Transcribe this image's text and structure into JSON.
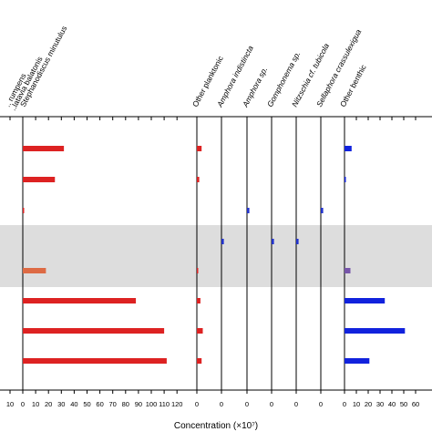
{
  "chart_data": {
    "type": "bar",
    "orientation": "horizontal",
    "xlabel": "Concentration (×10⁷)",
    "grid": false,
    "shaded_band": {
      "description": "grey horizontal band across all panels",
      "color": "#dddddd",
      "rows": [
        4,
        5
      ]
    },
    "rows": 9,
    "panels": [
      {
        "taxon": "...rumpens / Pseudostaurosira balatonis (partial)",
        "header_lines": [
          ".. rumpens",
          "..latavia balatonis"
        ],
        "axis": {
          "ticks": [
            10
          ],
          "min": 0,
          "max": 10
        },
        "values": [
          0,
          0,
          0,
          0,
          0,
          0,
          0,
          0,
          0
        ],
        "color": "#dd2222",
        "show_axis_line": false
      },
      {
        "taxon": "Stephanodiscus minutulus",
        "header_lines": [
          "Stephanodiscus minutulus"
        ],
        "axis": {
          "ticks": [
            0,
            10,
            20,
            30,
            40,
            50,
            60,
            70,
            80,
            90,
            100,
            110,
            120
          ],
          "min": 0,
          "max": 120
        },
        "values": [
          32,
          25,
          0.3,
          0,
          18,
          88,
          110,
          112,
          0
        ],
        "highlight": {
          "row": 4,
          "color": "#dd6a44"
        },
        "color": "#dd2222",
        "show_axis_line": true
      },
      {
        "taxon": "Other planktonic",
        "header_lines": [
          "Other planktonic"
        ],
        "axis": {
          "ticks": [
            0
          ],
          "min": 0,
          "max": 10
        },
        "values": [
          4,
          2,
          0,
          0,
          0.5,
          3,
          5,
          4,
          0
        ],
        "color": "#dd2222",
        "show_axis_line": true
      },
      {
        "taxon": "Amphora indistincta",
        "header_lines": [
          "Amphora indistincta"
        ],
        "axis": {
          "ticks": [
            0
          ],
          "min": 0,
          "max": 10
        },
        "values": [
          0,
          0,
          0,
          2,
          0,
          0,
          0,
          0,
          0
        ],
        "color": "#2233cc",
        "show_axis_line": true
      },
      {
        "taxon": "Amphora sp.",
        "header_lines": [
          "Amphora sp."
        ],
        "axis": {
          "ticks": [
            0
          ],
          "min": 0,
          "max": 10
        },
        "values": [
          0,
          0,
          2,
          0,
          0,
          0,
          0,
          0,
          0
        ],
        "color": "#2233cc",
        "show_axis_line": true
      },
      {
        "taxon": "Gomphonema sp.",
        "header_lines": [
          "Gomphonema sp."
        ],
        "axis": {
          "ticks": [
            0
          ],
          "min": 0,
          "max": 10
        },
        "values": [
          0,
          0,
          0,
          2,
          0,
          0,
          0,
          0,
          0
        ],
        "color": "#2233cc",
        "show_axis_line": true
      },
      {
        "taxon": "Nitzschia cf. tubicola",
        "header_lines": [
          "Nitzschia cf. tubicola"
        ],
        "axis": {
          "ticks": [
            0
          ],
          "min": 0,
          "max": 10
        },
        "values": [
          0,
          0,
          0,
          2,
          0,
          0,
          0,
          0,
          0
        ],
        "color": "#2233cc",
        "show_axis_line": true
      },
      {
        "taxon": "Sellaphora crassulexigua",
        "header_lines": [
          "Sellaphora crassulexigua"
        ],
        "axis": {
          "ticks": [
            0
          ],
          "min": 0,
          "max": 10
        },
        "values": [
          0,
          0,
          2,
          0,
          0,
          0,
          0,
          0,
          0
        ],
        "color": "#2233cc",
        "show_axis_line": true
      },
      {
        "taxon": "Other benthic",
        "header_lines": [
          "Other benthic"
        ],
        "axis": {
          "ticks": [
            0,
            10,
            20,
            30,
            40,
            50,
            60
          ],
          "min": 0,
          "max": 60
        },
        "values": [
          6,
          0.5,
          0,
          0,
          5,
          34,
          51,
          21,
          0
        ],
        "highlight": {
          "row": 4,
          "color": "#7755aa"
        },
        "color": "#1122dd",
        "show_axis_line": true
      }
    ]
  }
}
